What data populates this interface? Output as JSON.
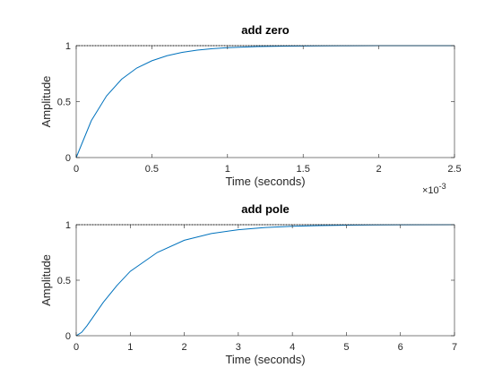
{
  "chart_data": [
    {
      "type": "line",
      "title": "add zero",
      "xlabel": "Time (seconds)",
      "ylabel": "Amplitude",
      "xlim": [
        0,
        0.0025
      ],
      "ylim": [
        0,
        1
      ],
      "xticks": [
        0,
        0.0005,
        0.001,
        0.0015,
        0.002,
        0.0025
      ],
      "xtick_labels": [
        "0",
        "0.5",
        "1",
        "1.5",
        "2",
        "2.5"
      ],
      "yticks": [
        0,
        0.5,
        1
      ],
      "ytick_labels": [
        "0",
        "0.5",
        "1"
      ],
      "x_exponent_base": "×10",
      "x_exponent_power": "-3",
      "series": [
        {
          "color": "#0072BD",
          "x": [
            0,
            0.0001,
            0.0002,
            0.0003,
            0.0004,
            0.0005,
            0.0006,
            0.0007,
            0.0008,
            0.0009,
            0.001,
            0.0012,
            0.0014,
            0.0016,
            0.0018,
            0.002,
            0.0022,
            0.0025
          ],
          "y": [
            0,
            0.33,
            0.55,
            0.7,
            0.8,
            0.865,
            0.91,
            0.94,
            0.96,
            0.973,
            0.982,
            0.992,
            0.996,
            0.998,
            0.999,
            1.0,
            1.0,
            1.0
          ]
        }
      ],
      "reference_line": {
        "y": 1,
        "style": "dotted",
        "color": "#000000"
      }
    },
    {
      "type": "line",
      "title": "add pole",
      "xlabel": "Time (seconds)",
      "ylabel": "Amplitude",
      "xlim": [
        0,
        7
      ],
      "ylim": [
        0,
        1
      ],
      "xticks": [
        0,
        1,
        2,
        3,
        4,
        5,
        6,
        7
      ],
      "xtick_labels": [
        "0",
        "1",
        "2",
        "3",
        "4",
        "5",
        "6",
        "7"
      ],
      "yticks": [
        0,
        0.5,
        1
      ],
      "ytick_labels": [
        "0",
        "0.5",
        "1"
      ],
      "series": [
        {
          "color": "#0072BD",
          "x": [
            0,
            0.1,
            0.2,
            0.3,
            0.5,
            0.75,
            1,
            1.5,
            2,
            2.5,
            3,
            3.5,
            4,
            4.5,
            5,
            5.5,
            6,
            7
          ],
          "y": [
            0,
            0.03,
            0.09,
            0.16,
            0.3,
            0.45,
            0.58,
            0.75,
            0.86,
            0.92,
            0.955,
            0.975,
            0.986,
            0.992,
            0.996,
            0.998,
            0.999,
            1.0
          ]
        }
      ],
      "reference_line": {
        "y": 1,
        "style": "dotted",
        "color": "#000000"
      }
    }
  ]
}
